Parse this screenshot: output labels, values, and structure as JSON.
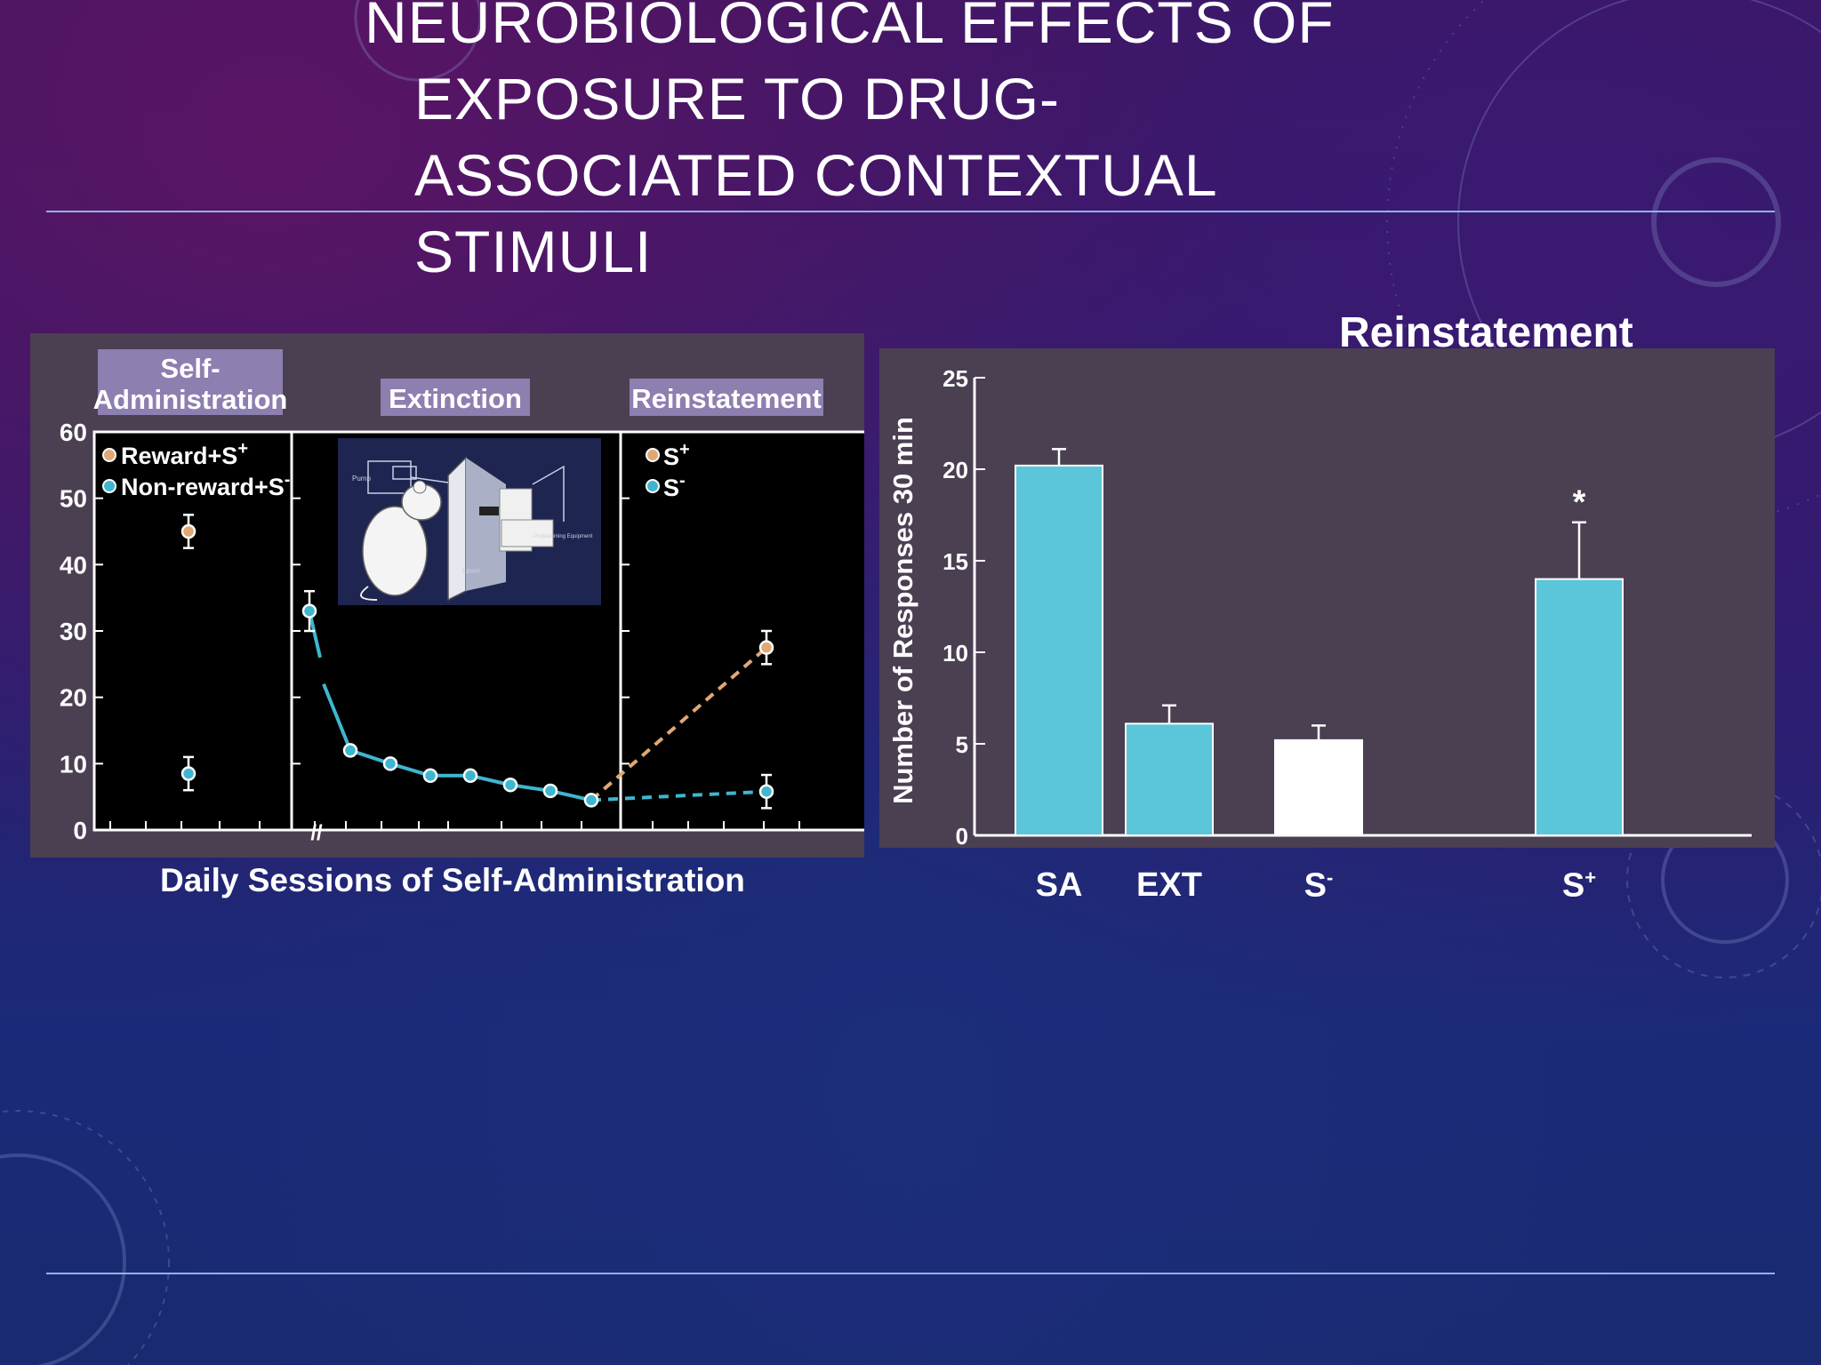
{
  "slide": {
    "title_lines": [
      "NEUROBIOLOGICAL EFFECTS OF",
      "EXPOSURE TO DRUG-",
      "ASSOCIATED CONTEXTUAL",
      "STIMULI"
    ],
    "right_heading": "Reinstatement",
    "left_caption": "Daily Sessions of Self-Administration"
  },
  "chart_data": [
    {
      "type": "line",
      "phases": [
        "Self-\nAdministration",
        "Extinction",
        "Reinstatement"
      ],
      "phase_labels": [
        "Self-",
        "Administration",
        "Extinction",
        "Reinstatement"
      ],
      "ylim": [
        0,
        60
      ],
      "yticks": [
        "0",
        "10",
        "20",
        "30",
        "40",
        "50",
        "60"
      ],
      "legend_sa": [
        "Reward+S",
        "Non-reward+S"
      ],
      "legend_re": [
        "S",
        "S"
      ],
      "superscripts": [
        "+",
        "-",
        "+",
        "-"
      ],
      "inset_labels": [
        "Pump",
        "Lever",
        "Programming Equipment"
      ],
      "series": [
        {
          "name": "Reward+S+",
          "color": "#e0a874",
          "self_admin": 45,
          "reinstatement": 27.5
        },
        {
          "name": "Non-reward+S-",
          "color": "#3fb6cf",
          "self_admin": 8.5,
          "extinction": [
            33,
            12,
            10,
            8.2,
            8.2,
            6.8,
            5.9,
            4.5
          ],
          "reinstatement": 5.8
        }
      ],
      "colors": {
        "reward": "#e0a874",
        "nonreward": "#3fb6cf"
      }
    },
    {
      "type": "bar",
      "categories": [
        "SA",
        "EXT",
        "S",
        "S"
      ],
      "category_sup": [
        "",
        "",
        "-",
        "+"
      ],
      "values": [
        20.2,
        6.1,
        5.2,
        14
      ],
      "errors": [
        0.9,
        1.0,
        0.8,
        3.1
      ],
      "bar_colors": [
        "#5bc6da",
        "#5bc6da",
        "#ffffff",
        "#5bc6da"
      ],
      "significance": [
        "",
        "",
        "",
        "*"
      ],
      "ylabel": "Number of Responses 30 min",
      "ylim": [
        0,
        25
      ],
      "yticks": [
        "0",
        "5",
        "10",
        "15",
        "20",
        "25"
      ]
    }
  ]
}
